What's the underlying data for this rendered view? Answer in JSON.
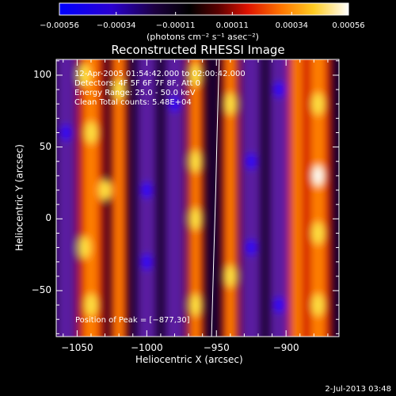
{
  "chart_data": {
    "type": "heatmap",
    "title": "Reconstructed RHESSI Image",
    "xlabel": "Heliocentric X (arcsec)",
    "ylabel": "Heliocentric Y (arcsec)",
    "xlim": [
      -1065,
      -862
    ],
    "ylim": [
      -82,
      111
    ],
    "xticks": [
      -1050,
      -1000,
      -950,
      -900
    ],
    "xtick_labels": [
      "−1050",
      "−1000",
      "−950",
      "−900"
    ],
    "yticks": [
      -50,
      0,
      50,
      100
    ],
    "ytick_labels": [
      "−50",
      "0",
      "50",
      "100"
    ],
    "colorbar": {
      "range": [
        -0.00056,
        0.00056
      ],
      "ticks": [
        -0.00056,
        -0.00034,
        -0.00011,
        0.00011,
        0.00034,
        0.00056
      ],
      "tick_labels": [
        "−0.00056",
        "−0.00034",
        "−0.00011",
        "0.00011",
        "0.00034",
        "0.00056"
      ],
      "units_label": "(photons cm⁻² s⁻¹ asec⁻²)",
      "colors": [
        "#0000ff",
        "#3300cc",
        "#1a0033",
        "#000000",
        "#660000",
        "#ff2200",
        "#ff8800",
        "#ffdd33",
        "#ffffff"
      ]
    },
    "annotations": [
      "12-Apr-2005 01:54:42.000 to 02:00:42.000",
      "Detectors: 4F 5F 6F 7F 8F, Att 0",
      "Energy Range: 25.0 - 50.0 keV",
      "Clean    Total counts: 5.48E+04"
    ],
    "peak_label": "Position of Peak = [−877,30]",
    "limb_curve": {
      "x": [
        -953.5,
        -952,
        -950.5,
        -949.5,
        -948.5,
        -948
      ],
      "y": [
        -82,
        -30,
        20,
        60,
        95,
        111
      ]
    },
    "bright_ridges_x": [
      -1040,
      -1020,
      -965,
      -940,
      -892,
      -877
    ],
    "dark_ridges_x": [
      -1058,
      -1000,
      -980,
      -925,
      -905
    ],
    "peak": [
      -877,
      30
    ]
  },
  "footer": {
    "date": "2-Jul-2013 03:48"
  }
}
